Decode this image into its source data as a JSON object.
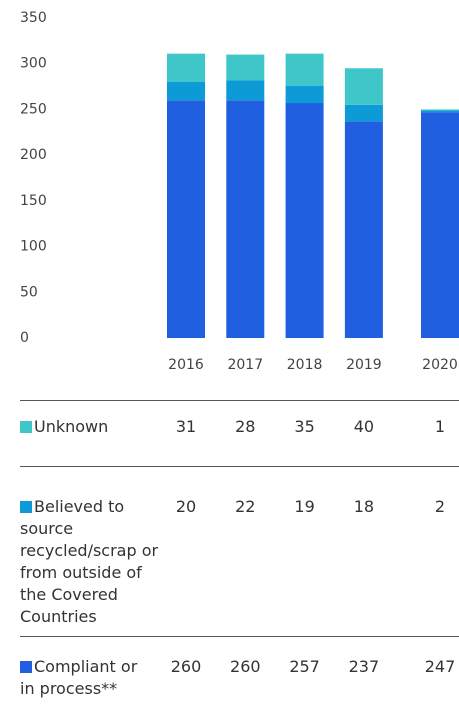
{
  "chart_data": {
    "type": "stacked_bar",
    "categories": [
      "2016",
      "2017",
      "2018",
      "2019",
      "2020"
    ],
    "series": [
      {
        "name": "Compliant or in process**",
        "color": "#1f5fe0",
        "values": [
          260,
          260,
          257,
          237,
          247
        ]
      },
      {
        "name": "Believed to source recycled/scrap or from outside of the Covered Countries",
        "color": "#0d9bd7",
        "values": [
          20,
          22,
          19,
          18,
          2
        ]
      },
      {
        "name": "Unknown",
        "color": "#3ec6c9",
        "values": [
          31,
          28,
          35,
          40,
          1
        ]
      }
    ],
    "ylim": [
      0,
      350
    ],
    "yticks": [
      0,
      50,
      100,
      150,
      200,
      250,
      300,
      350
    ],
    "grid": false
  }
}
